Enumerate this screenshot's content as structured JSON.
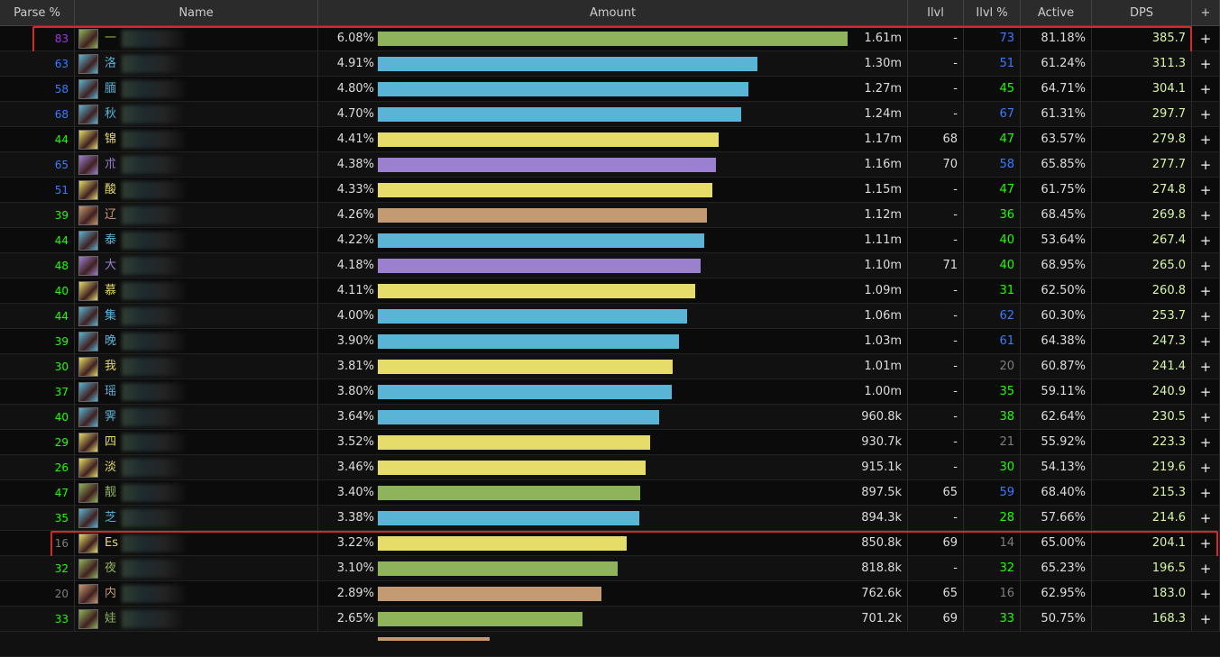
{
  "table": {
    "headers": [
      "Parse %",
      "Name",
      "Amount",
      "Ilvl",
      "Ilvl %",
      "Active",
      "DPS",
      "+"
    ],
    "row_action": "+",
    "rows": [
      {
        "parse": 83,
        "name": "一",
        "percent": "6.08%",
        "amount": "1.61m",
        "ilvl": "-",
        "ilvl_parse": 73,
        "active": "81.18%",
        "dps": "385.7",
        "color": "#8fb35a",
        "highlight": true
      },
      {
        "parse": 63,
        "name": "洛",
        "percent": "4.91%",
        "amount": "1.30m",
        "ilvl": "-",
        "ilvl_parse": 51,
        "active": "61.24%",
        "dps": "311.3",
        "color": "#5ab4d6"
      },
      {
        "parse": 58,
        "name": "腼",
        "percent": "4.80%",
        "amount": "1.27m",
        "ilvl": "-",
        "ilvl_parse": 45,
        "active": "64.71%",
        "dps": "304.1",
        "color": "#5ab4d6"
      },
      {
        "parse": 68,
        "name": "秋",
        "percent": "4.70%",
        "amount": "1.24m",
        "ilvl": "-",
        "ilvl_parse": 67,
        "active": "61.31%",
        "dps": "297.7",
        "color": "#5ab4d6"
      },
      {
        "parse": 44,
        "name": "锦",
        "percent": "4.41%",
        "amount": "1.17m",
        "ilvl": 68,
        "ilvl_parse": 47,
        "active": "63.57%",
        "dps": "279.8",
        "color": "#e6dc6a"
      },
      {
        "parse": 65,
        "name": "朮",
        "percent": "4.38%",
        "amount": "1.16m",
        "ilvl": 70,
        "ilvl_parse": 58,
        "active": "65.85%",
        "dps": "277.7",
        "color": "#9b80d0"
      },
      {
        "parse": 51,
        "name": "酸",
        "percent": "4.33%",
        "amount": "1.15m",
        "ilvl": "-",
        "ilvl_parse": 47,
        "active": "61.75%",
        "dps": "274.8",
        "color": "#e6dc6a"
      },
      {
        "parse": 39,
        "name": "辽",
        "percent": "4.26%",
        "amount": "1.12m",
        "ilvl": "-",
        "ilvl_parse": 36,
        "active": "68.45%",
        "dps": "269.8",
        "color": "#c49a72"
      },
      {
        "parse": 44,
        "name": "泰",
        "percent": "4.22%",
        "amount": "1.11m",
        "ilvl": "-",
        "ilvl_parse": 40,
        "active": "53.64%",
        "dps": "267.4",
        "color": "#5ab4d6"
      },
      {
        "parse": 48,
        "name": "大",
        "percent": "4.18%",
        "amount": "1.10m",
        "ilvl": 71,
        "ilvl_parse": 40,
        "active": "68.95%",
        "dps": "265.0",
        "color": "#9b80d0"
      },
      {
        "parse": 40,
        "name": "慕",
        "percent": "4.11%",
        "amount": "1.09m",
        "ilvl": "-",
        "ilvl_parse": 31,
        "active": "62.50%",
        "dps": "260.8",
        "color": "#e6dc6a"
      },
      {
        "parse": 44,
        "name": "集",
        "percent": "4.00%",
        "amount": "1.06m",
        "ilvl": "-",
        "ilvl_parse": 62,
        "active": "60.30%",
        "dps": "253.7",
        "color": "#5ab4d6"
      },
      {
        "parse": 39,
        "name": "晚",
        "percent": "3.90%",
        "amount": "1.03m",
        "ilvl": "-",
        "ilvl_parse": 61,
        "active": "64.38%",
        "dps": "247.3",
        "color": "#5ab4d6"
      },
      {
        "parse": 30,
        "name": "我",
        "percent": "3.81%",
        "amount": "1.01m",
        "ilvl": "-",
        "ilvl_parse": 20,
        "active": "60.87%",
        "dps": "241.4",
        "color": "#e6dc6a"
      },
      {
        "parse": 37,
        "name": "瑶",
        "percent": "3.80%",
        "amount": "1.00m",
        "ilvl": "-",
        "ilvl_parse": 35,
        "active": "59.11%",
        "dps": "240.9",
        "color": "#5ab4d6"
      },
      {
        "parse": 40,
        "name": "霁",
        "percent": "3.64%",
        "amount": "960.8k",
        "ilvl": "-",
        "ilvl_parse": 38,
        "active": "62.64%",
        "dps": "230.5",
        "color": "#5ab4d6"
      },
      {
        "parse": 29,
        "name": "四",
        "percent": "3.52%",
        "amount": "930.7k",
        "ilvl": "-",
        "ilvl_parse": 21,
        "active": "55.92%",
        "dps": "223.3",
        "color": "#e6dc6a"
      },
      {
        "parse": 26,
        "name": "淡",
        "percent": "3.46%",
        "amount": "915.1k",
        "ilvl": "-",
        "ilvl_parse": 30,
        "active": "54.13%",
        "dps": "219.6",
        "color": "#e6dc6a"
      },
      {
        "parse": 47,
        "name": "靓",
        "percent": "3.40%",
        "amount": "897.5k",
        "ilvl": 65,
        "ilvl_parse": 59,
        "active": "68.40%",
        "dps": "215.3",
        "color": "#8fb35a"
      },
      {
        "parse": 35,
        "name": "芝",
        "percent": "3.38%",
        "amount": "894.3k",
        "ilvl": "-",
        "ilvl_parse": 28,
        "active": "57.66%",
        "dps": "214.6",
        "color": "#5ab4d6"
      },
      {
        "parse": 16,
        "name": "Es",
        "percent": "3.22%",
        "amount": "850.8k",
        "ilvl": 69,
        "ilvl_parse": 14,
        "active": "65.00%",
        "dps": "204.1",
        "color": "#e6dc6a",
        "highlight": true
      },
      {
        "parse": 32,
        "name": "夜",
        "percent": "3.10%",
        "amount": "818.8k",
        "ilvl": "-",
        "ilvl_parse": 32,
        "active": "65.23%",
        "dps": "196.5",
        "color": "#8fb35a"
      },
      {
        "parse": 20,
        "name": "内",
        "percent": "2.89%",
        "amount": "762.6k",
        "ilvl": 65,
        "ilvl_parse": 16,
        "active": "62.95%",
        "dps": "183.0",
        "color": "#c49a72"
      },
      {
        "parse": 33,
        "name": "娃",
        "percent": "2.65%",
        "amount": "701.2k",
        "ilvl": 69,
        "ilvl_parse": 33,
        "active": "50.75%",
        "dps": "168.3",
        "color": "#8fb35a"
      }
    ]
  }
}
